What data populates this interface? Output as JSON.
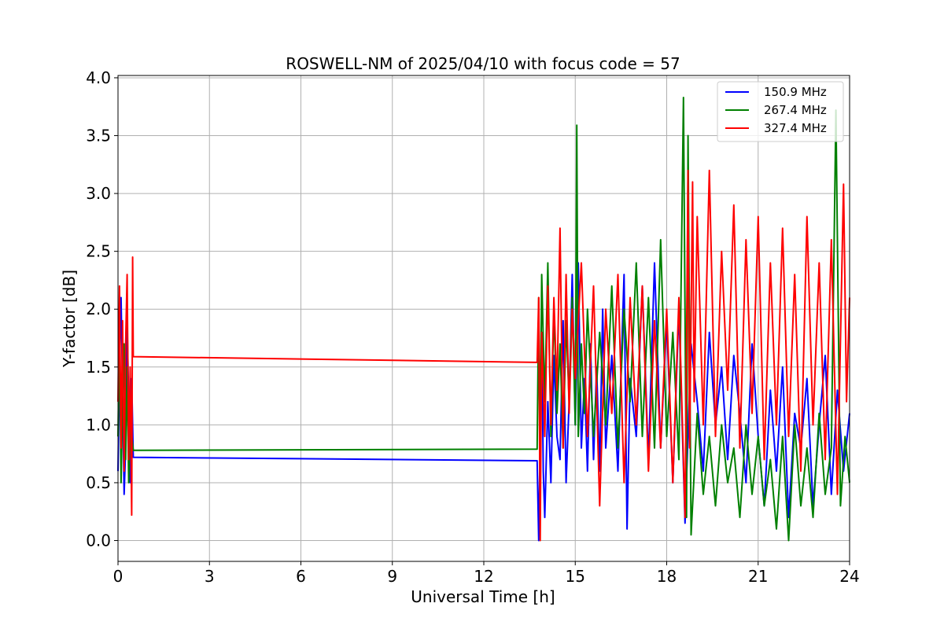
{
  "chart_data": {
    "type": "line",
    "title": "ROSWELL-NM of 2025/04/10 with focus code = 57",
    "xlabel": "Universal Time [h]",
    "ylabel": "Y-factor [dB]",
    "xlim": [
      0,
      24
    ],
    "ylim": [
      -0.18,
      4.02
    ],
    "xticks": [
      "0",
      "3",
      "6",
      "9",
      "12",
      "15",
      "18",
      "21",
      "24"
    ],
    "yticks": [
      "0.0",
      "0.5",
      "1.0",
      "1.5",
      "2.0",
      "2.5",
      "3.0",
      "3.5",
      "4.0"
    ],
    "grid": true,
    "legend_position": "top-right",
    "series": [
      {
        "name": "150.9 MHz",
        "color": "#0000ff",
        "x": [
          0.0,
          0.05,
          0.1,
          0.15,
          0.2,
          0.25,
          0.3,
          0.35,
          0.4,
          0.45,
          0.5,
          13.75,
          13.8,
          13.85,
          13.9,
          13.95,
          14.0,
          14.1,
          14.2,
          14.3,
          14.4,
          14.5,
          14.6,
          14.7,
          14.8,
          14.9,
          15.0,
          15.1,
          15.2,
          15.3,
          15.4,
          15.5,
          15.6,
          15.7,
          15.8,
          15.9,
          16.0,
          16.2,
          16.4,
          16.6,
          16.7,
          16.8,
          17.0,
          17.2,
          17.4,
          17.6,
          17.8,
          18.0,
          18.2,
          18.4,
          18.6,
          18.8,
          19.0,
          19.2,
          19.4,
          19.6,
          19.8,
          20.0,
          20.2,
          20.4,
          20.6,
          20.8,
          21.0,
          21.2,
          21.4,
          21.6,
          21.8,
          22.0,
          22.2,
          22.4,
          22.6,
          22.8,
          23.0,
          23.2,
          23.4,
          23.6,
          23.8,
          24.0
        ],
        "values": [
          0.6,
          1.5,
          2.1,
          1.3,
          0.4,
          0.8,
          1.9,
          1.2,
          0.5,
          1.4,
          0.72,
          0.69,
          0.0,
          0.9,
          1.8,
          0.6,
          0.2,
          1.2,
          0.5,
          1.6,
          0.9,
          0.7,
          1.9,
          0.5,
          1.2,
          2.3,
          1.0,
          2.4,
          0.8,
          1.4,
          0.6,
          1.7,
          0.7,
          1.5,
          0.6,
          2.0,
          0.8,
          1.6,
          0.6,
          2.3,
          0.1,
          1.4,
          0.9,
          2.2,
          0.7,
          2.4,
          0.8,
          1.9,
          0.5,
          2.0,
          0.15,
          1.7,
          1.2,
          0.6,
          1.8,
          1.0,
          1.5,
          0.7,
          1.6,
          1.1,
          0.5,
          1.7,
          0.9,
          0.3,
          1.3,
          0.6,
          1.5,
          0.2,
          1.1,
          0.8,
          1.4,
          0.3,
          1.0,
          1.6,
          0.4,
          1.3,
          0.6,
          1.1
        ]
      },
      {
        "name": "267.4 MHz",
        "color": "#008000",
        "x": [
          0.0,
          0.05,
          0.1,
          0.15,
          0.2,
          0.25,
          0.3,
          0.35,
          0.4,
          0.45,
          0.5,
          13.75,
          13.8,
          13.85,
          13.9,
          14.0,
          14.1,
          14.2,
          14.3,
          14.4,
          14.5,
          14.6,
          14.7,
          14.8,
          14.9,
          15.0,
          15.05,
          15.1,
          15.2,
          15.3,
          15.4,
          15.6,
          15.8,
          16.0,
          16.2,
          16.4,
          16.6,
          16.8,
          17.0,
          17.2,
          17.4,
          17.6,
          17.8,
          18.0,
          18.2,
          18.4,
          18.55,
          18.65,
          18.7,
          18.8,
          19.0,
          19.2,
          19.4,
          19.6,
          19.8,
          20.0,
          20.2,
          20.4,
          20.6,
          20.8,
          21.0,
          21.2,
          21.4,
          21.6,
          21.8,
          22.0,
          22.2,
          22.4,
          22.6,
          22.8,
          23.0,
          23.2,
          23.4,
          23.55,
          23.7,
          23.85,
          24.0
        ],
        "values": [
          0.9,
          1.8,
          0.5,
          1.2,
          1.7,
          0.7,
          1.5,
          0.5,
          1.1,
          0.9,
          0.78,
          0.79,
          2.1,
          0.8,
          2.3,
          1.2,
          2.4,
          0.9,
          2.0,
          1.1,
          1.7,
          0.8,
          1.9,
          1.2,
          2.1,
          1.0,
          3.59,
          0.9,
          1.7,
          1.1,
          2.0,
          0.9,
          1.8,
          1.0,
          2.2,
          0.8,
          2.0,
          1.2,
          2.4,
          0.9,
          2.1,
          0.8,
          2.6,
          0.9,
          1.8,
          0.7,
          3.83,
          0.2,
          3.5,
          0.05,
          1.1,
          0.4,
          0.9,
          0.3,
          1.0,
          0.5,
          0.8,
          0.2,
          1.0,
          0.4,
          0.9,
          0.3,
          0.7,
          0.1,
          0.9,
          0.0,
          1.0,
          0.3,
          0.8,
          0.2,
          1.1,
          0.4,
          0.8,
          3.72,
          0.3,
          0.9,
          0.5
        ]
      },
      {
        "name": "327.4 MHz",
        "color": "#ff0000",
        "x": [
          0.0,
          0.05,
          0.1,
          0.15,
          0.2,
          0.25,
          0.3,
          0.35,
          0.4,
          0.45,
          0.48,
          0.5,
          13.75,
          13.8,
          13.85,
          13.9,
          14.0,
          14.1,
          14.2,
          14.3,
          14.4,
          14.5,
          14.6,
          14.7,
          14.8,
          14.9,
          15.0,
          15.2,
          15.4,
          15.6,
          15.8,
          16.0,
          16.2,
          16.4,
          16.6,
          16.8,
          17.0,
          17.2,
          17.4,
          17.6,
          17.8,
          18.0,
          18.2,
          18.4,
          18.6,
          18.7,
          18.75,
          18.85,
          18.9,
          19.0,
          19.2,
          19.4,
          19.6,
          19.8,
          20.0,
          20.2,
          20.4,
          20.6,
          20.8,
          21.0,
          21.2,
          21.4,
          21.6,
          21.8,
          22.0,
          22.2,
          22.4,
          22.6,
          22.8,
          23.0,
          23.2,
          23.4,
          23.6,
          23.8,
          23.9,
          24.0
        ],
        "values": [
          1.2,
          2.2,
          0.8,
          1.9,
          0.6,
          1.7,
          2.3,
          0.7,
          1.5,
          0.22,
          2.45,
          1.59,
          1.54,
          2.1,
          0.0,
          1.8,
          0.9,
          2.2,
          1.0,
          2.1,
          1.3,
          2.7,
          0.8,
          2.3,
          1.1,
          2.0,
          1.4,
          2.4,
          0.9,
          2.2,
          0.3,
          2.0,
          1.1,
          2.3,
          0.5,
          2.1,
          1.0,
          2.2,
          0.6,
          1.9,
          0.8,
          2.0,
          0.5,
          2.1,
          0.2,
          3.2,
          0.8,
          3.1,
          1.2,
          2.8,
          1.0,
          3.2,
          0.9,
          2.5,
          1.3,
          2.9,
          0.8,
          2.6,
          1.1,
          2.8,
          0.7,
          2.4,
          1.0,
          2.7,
          0.9,
          2.3,
          0.6,
          2.8,
          1.0,
          2.4,
          0.7,
          2.6,
          0.4,
          3.08,
          1.2,
          2.1
        ]
      }
    ]
  }
}
